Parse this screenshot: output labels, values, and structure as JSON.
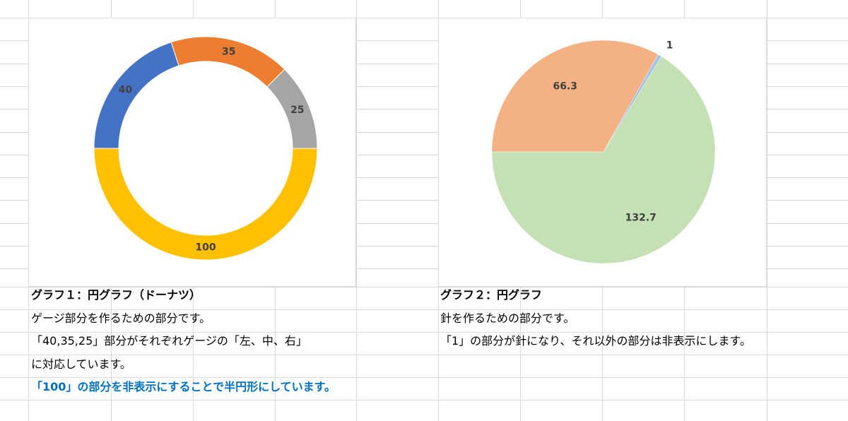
{
  "chart_data": [
    {
      "type": "pie",
      "subtype": "doughnut",
      "title": "",
      "categories": [
        "40",
        "35",
        "25",
        "100"
      ],
      "values": [
        40,
        35,
        25,
        100
      ],
      "colors": [
        "#4472c4",
        "#ed7d31",
        "#a5a5a5",
        "#ffc000"
      ],
      "data_labels": [
        "40",
        "35",
        "25",
        "100"
      ],
      "start": "left",
      "legend": "none"
    },
    {
      "type": "pie",
      "title": "",
      "categories": [
        "66.3",
        "1",
        "132.7"
      ],
      "values": [
        66.3,
        1,
        132.7
      ],
      "colors": [
        "#f4b183",
        "#9dc3e6",
        "#c5e0b4"
      ],
      "data_labels": [
        "66.3",
        "1",
        "132.7"
      ],
      "start": "left",
      "legend": "none"
    }
  ],
  "notes": {
    "graph1": {
      "heading": "グラフ１：円グラフ（ドーナツ）",
      "line1": "ゲージ部分を作るための部分です。",
      "line2": "「40,35,25」部分がそれぞれゲージの「左、中、右」",
      "line3": "に対応しています。",
      "line4": "「100」の部分を非表示にすることで半円形にしています。"
    },
    "graph2": {
      "heading": "グラフ２：円グラフ",
      "line1": "針を作るための部分です。",
      "line2": "「1」の部分が針になり、それ以外の部分は非表示にします。"
    }
  },
  "sheet": {
    "gridline_color": "#d9d9d9"
  }
}
